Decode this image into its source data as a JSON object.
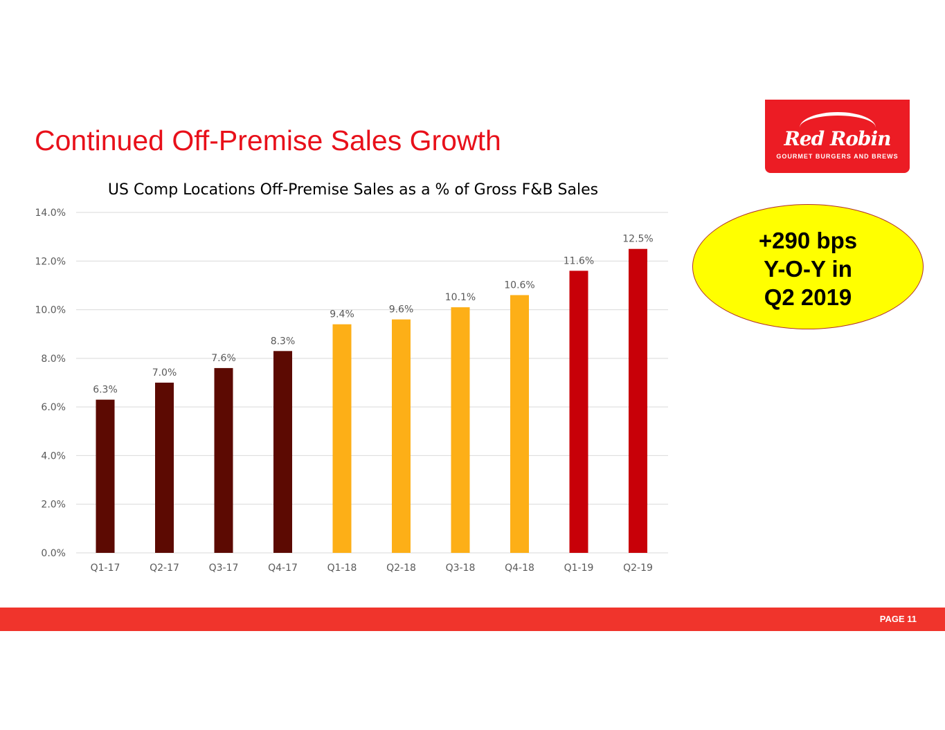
{
  "header": {
    "title": "Continued Off-Premise Sales Growth"
  },
  "logo": {
    "name": "Red Robin",
    "tagline": "GOURMET BURGERS AND BREWS",
    "color": "#ec1c24"
  },
  "callout": {
    "lines": [
      "+290 bps",
      "Y-O-Y in",
      "Q2 2019"
    ]
  },
  "footer": {
    "page": "PAGE 11"
  },
  "chart_data": {
    "type": "bar",
    "title": "US Comp Locations Off-Premise Sales as a % of Gross F&B Sales",
    "categories": [
      "Q1-17",
      "Q2-17",
      "Q3-17",
      "Q4-17",
      "Q1-18",
      "Q2-18",
      "Q3-18",
      "Q4-18",
      "Q1-19",
      "Q2-19"
    ],
    "values": [
      6.3,
      7.0,
      7.6,
      8.3,
      9.4,
      9.6,
      10.1,
      10.6,
      11.6,
      12.5
    ],
    "data_labels": [
      "6.3%",
      "7.0%",
      "7.6%",
      "8.3%",
      "9.4%",
      "9.6%",
      "10.1%",
      "10.6%",
      "11.6%",
      "12.5%"
    ],
    "colors": [
      "#5c0a02",
      "#5c0a02",
      "#5c0a02",
      "#5c0a02",
      "#fdaf17",
      "#fdaf17",
      "#fdaf17",
      "#fdaf17",
      "#c80008",
      "#c80008"
    ],
    "yticks": [
      "0.0%",
      "2.0%",
      "4.0%",
      "6.0%",
      "8.0%",
      "10.0%",
      "12.0%",
      "14.0%"
    ],
    "ylim": [
      0,
      14
    ],
    "grid": true,
    "xlabel": "",
    "ylabel": ""
  }
}
